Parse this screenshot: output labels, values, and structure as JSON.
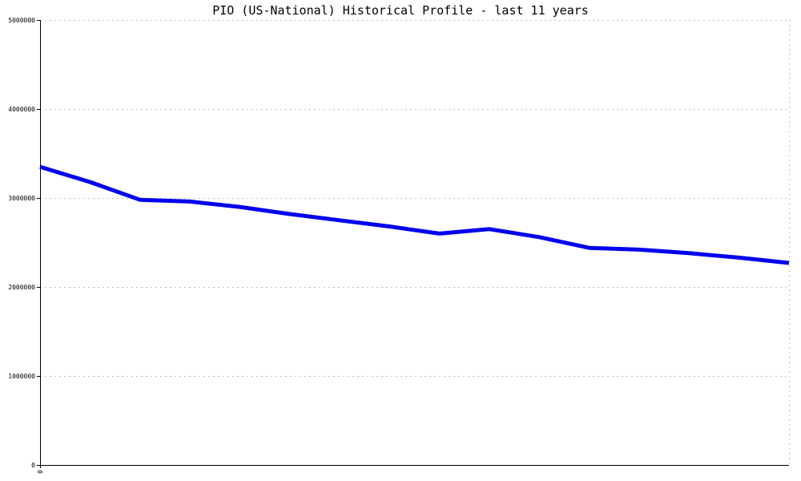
{
  "chart_data": {
    "type": "line",
    "title": "PIO (US-National) Historical Profile - last 11 years",
    "xlabel": "",
    "ylabel": "",
    "x_tick_labels": [
      "0"
    ],
    "y_ticks": [
      0,
      1000000,
      2000000,
      3000000,
      4000000,
      5000000
    ],
    "y_tick_labels": [
      "0",
      "1000000",
      "2000000",
      "3000000",
      "4000000",
      "5000000"
    ],
    "ylim": [
      0,
      5000000
    ],
    "grid": true,
    "legend": "none",
    "colors": {
      "line": "#0000ee",
      "grid": "#c0c0c0",
      "axis": "#000000"
    },
    "series": [
      {
        "values": [
          3350000,
          3180000,
          2980000,
          2960000,
          2900000,
          2820000,
          2750000,
          2680000,
          2600000,
          2650000,
          2560000,
          2440000,
          2420000,
          2380000,
          2330000,
          2270000
        ]
      }
    ]
  }
}
